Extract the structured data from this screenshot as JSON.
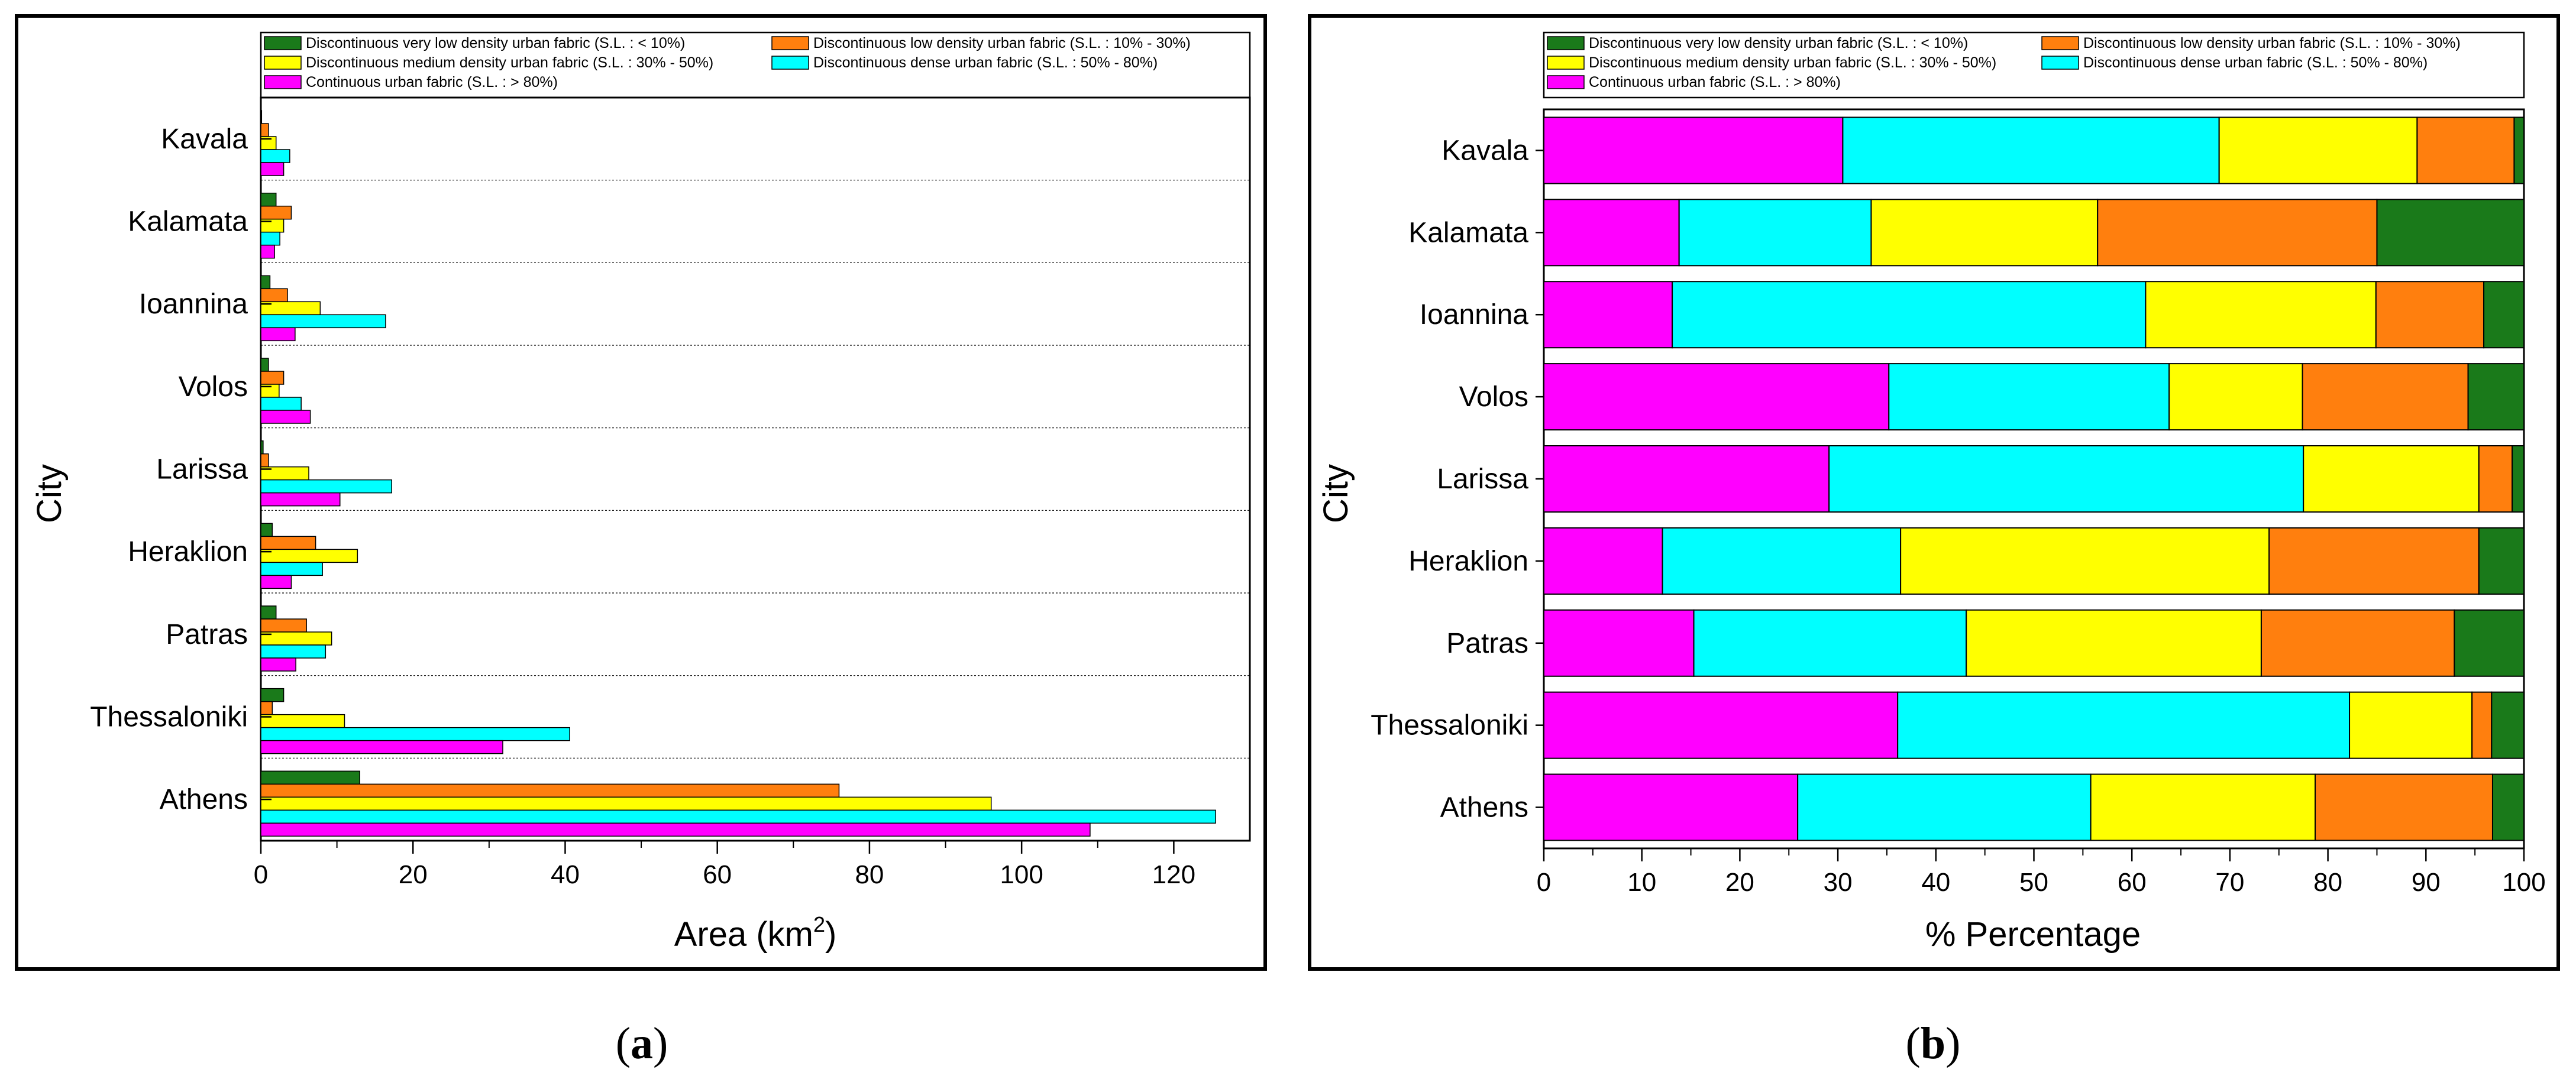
{
  "categories": [
    "Kavala",
    "Kalamata",
    "Ioannina",
    "Volos",
    "Larissa",
    "Heraklion",
    "Patras",
    "Thessaloniki",
    "Athens"
  ],
  "series_names": [
    "Discontinuous very low density urban fabric (S.L. : < 10%)",
    "Discontinuous low density urban fabric (S.L. : 10% - 30%)",
    "Discontinuous medium density urban fabric (S.L. : 30% - 50%)",
    "Discontinuous dense urban fabric (S.L. : 50% -  80%)",
    "Continuous urban fabric (S.L. : > 80%)"
  ],
  "series_colors": [
    "#1a7a1a",
    "#ff7f0e",
    "#ffff00",
    "#00ffff",
    "#ff00ff"
  ],
  "chart_data": [
    {
      "type": "bar",
      "orientation": "horizontal",
      "panel_label": "a",
      "xlabel": "Area (km",
      "xlabel_sup": "2",
      "xlabel_close": ")",
      "ylabel": "City",
      "xlim": [
        0,
        130
      ],
      "xticks": [
        0,
        20,
        40,
        60,
        80,
        100,
        120
      ],
      "categories": [
        "Kavala",
        "Kalamata",
        "Ioannina",
        "Volos",
        "Larissa",
        "Heraklion",
        "Patras",
        "Thessaloniki",
        "Athens"
      ],
      "series": [
        {
          "name": "Discontinuous very low density urban fabric (S.L. : < 10%)",
          "values": [
            0.1,
            2.0,
            1.2,
            1.0,
            0.3,
            1.5,
            2.0,
            3.0,
            13.0
          ]
        },
        {
          "name": "Discontinuous low density urban fabric (S.L. : 10% - 30%)",
          "values": [
            1.0,
            4.0,
            3.5,
            3.0,
            1.0,
            7.2,
            6.0,
            1.5,
            76.0
          ]
        },
        {
          "name": "Discontinuous medium density urban fabric (S.L. : 30% - 50%)",
          "values": [
            2.0,
            3.0,
            7.8,
            2.4,
            6.3,
            12.7,
            9.3,
            11.0,
            96.0
          ]
        },
        {
          "name": "Discontinuous dense urban fabric (S.L. : 50% -  80%)",
          "values": [
            3.8,
            2.5,
            16.4,
            5.3,
            17.2,
            8.1,
            8.5,
            40.6,
            125.5
          ]
        },
        {
          "name": "Continuous urban fabric (S.L. : > 80%)",
          "values": [
            3.0,
            1.8,
            4.5,
            6.5,
            10.4,
            4.0,
            4.6,
            31.8,
            109.0
          ]
        }
      ]
    },
    {
      "type": "bar",
      "orientation": "horizontal",
      "stacked": true,
      "panel_label": "b",
      "xlabel": "% Percentage",
      "ylabel": "City",
      "xlim": [
        0,
        100
      ],
      "xticks": [
        0,
        10,
        20,
        30,
        40,
        50,
        60,
        70,
        80,
        90,
        100
      ],
      "categories": [
        "Kavala",
        "Kalamata",
        "Ioannina",
        "Volos",
        "Larissa",
        "Heraklion",
        "Patras",
        "Thessaloniki",
        "Athens"
      ],
      "series": [
        {
          "name": "Continuous urban fabric (S.L. : > 80%)",
          "values": [
            30.5,
            13.8,
            13.1,
            35.2,
            29.1,
            12.1,
            15.3,
            36.1,
            25.9
          ]
        },
        {
          "name": "Discontinuous dense urban fabric (S.L. : 50% -  80%)",
          "values": [
            38.4,
            19.6,
            48.3,
            28.6,
            48.4,
            24.3,
            27.8,
            46.1,
            29.9
          ]
        },
        {
          "name": "Discontinuous medium density urban fabric (S.L. : 30% - 50%)",
          "values": [
            20.2,
            23.1,
            23.5,
            13.6,
            17.9,
            37.6,
            30.1,
            12.5,
            22.9
          ]
        },
        {
          "name": "Discontinuous low density urban fabric (S.L. : 10% - 30%)",
          "values": [
            9.9,
            28.5,
            11.0,
            16.9,
            3.4,
            21.4,
            19.7,
            2.0,
            18.1
          ]
        },
        {
          "name": "Discontinuous very low density urban fabric (S.L. : < 10%)",
          "values": [
            1.0,
            15.0,
            4.1,
            5.7,
            1.2,
            4.6,
            7.1,
            3.3,
            3.2
          ]
        }
      ]
    }
  ]
}
